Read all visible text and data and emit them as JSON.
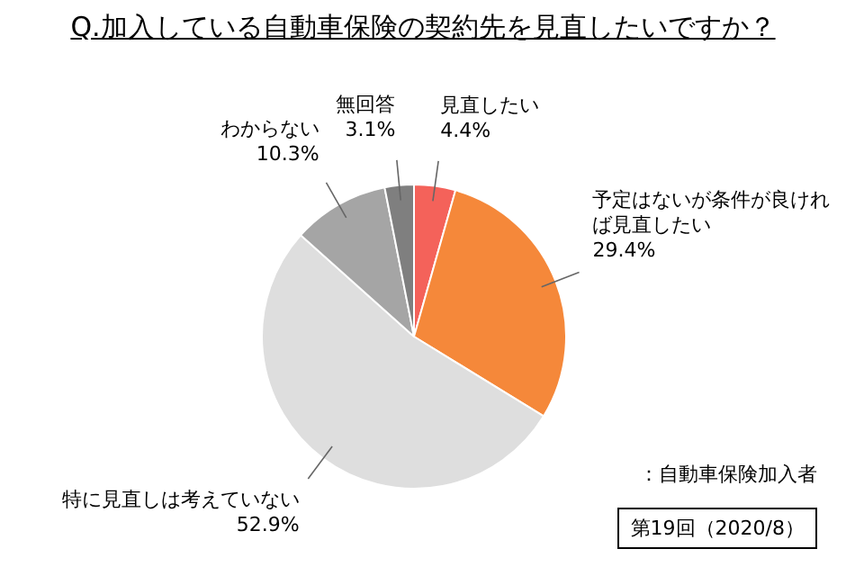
{
  "chart_data": {
    "type": "pie",
    "title": "Q.加入している自動車保険の契約先を見直したいですか？",
    "categories": [
      "見直したい",
      "予定はないが条件が良ければ見直したい",
      "特に見直しは考えていない",
      "わからない",
      "無回答"
    ],
    "values": [
      4.4,
      29.4,
      52.9,
      10.3,
      3.1
    ],
    "value_labels": [
      "4.4%",
      "29.4%",
      "52.9%",
      "10.3%",
      "3.1%"
    ],
    "colors": [
      "#f4625a",
      "#f5883a",
      "#dedede",
      "#a5a5a5",
      "#7f7f7f"
    ],
    "annotations": [
      "：自動車保険加入者",
      "第19回（2020/8）"
    ]
  }
}
